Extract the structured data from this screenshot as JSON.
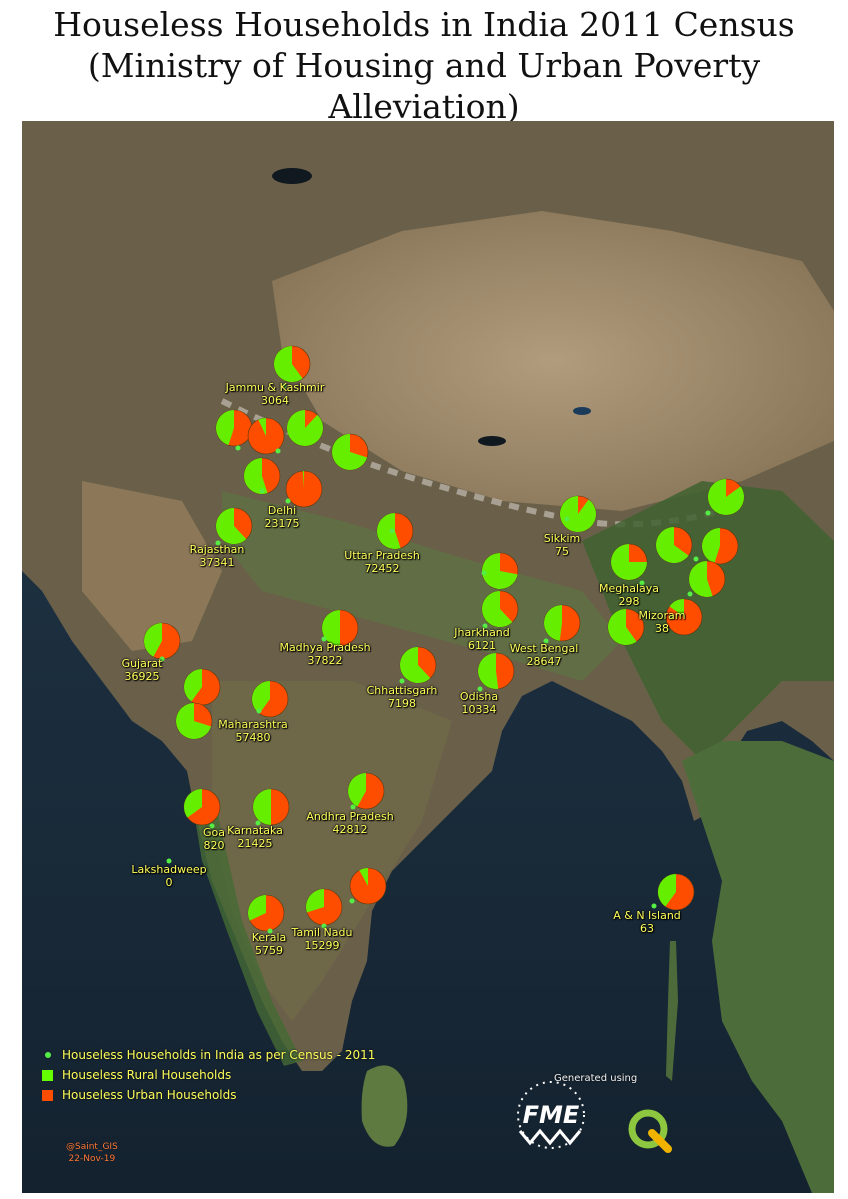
{
  "title": {
    "line1": "Houseless Households in India 2011 Census",
    "line2": "(Ministry of Housing and Urban Poverty",
    "line3": "Alleviation)"
  },
  "colors": {
    "rural": "#66ee00",
    "urban": "#ff4d00",
    "dot": "#55ee44",
    "label_text": "#ffff5a",
    "credit_text": "#ff7a3a"
  },
  "states": [
    {
      "id": "jk",
      "name": "Jammu & Kashmir",
      "value": "3064",
      "rural_share": 0.6
    },
    {
      "id": "delhi",
      "name": "Delhi",
      "value": "23175",
      "rural_share": 0.01
    },
    {
      "id": "rajasthan",
      "name": "Rajasthan",
      "value": "37341",
      "rural_share": 0.62
    },
    {
      "id": "up",
      "name": "Uttar Pradesh",
      "value": "72452",
      "rural_share": 0.55
    },
    {
      "id": "gujarat",
      "name": "Gujarat",
      "value": "36925",
      "rural_share": 0.42
    },
    {
      "id": "mp",
      "name": "Madhya Pradesh",
      "value": "37822",
      "rural_share": 0.5
    },
    {
      "id": "chhattisgarh",
      "name": "Chhattisgarh",
      "value": "7198",
      "rural_share": 0.62
    },
    {
      "id": "maharashtra",
      "name": "Maharashtra",
      "value": "57480",
      "rural_share": 0.4
    },
    {
      "id": "jharkhand",
      "name": "Jharkhand",
      "value": "6121",
      "rural_share": 0.62
    },
    {
      "id": "odisha",
      "name": "Odisha",
      "value": "10334",
      "rural_share": 0.52
    },
    {
      "id": "westbengal",
      "name": "West Bengal",
      "value": "28647",
      "rural_share": 0.48
    },
    {
      "id": "sikkim",
      "name": "Sikkim",
      "value": "75",
      "rural_share": 0.9
    },
    {
      "id": "meghalaya",
      "name": "Meghalaya",
      "value": "298",
      "rural_share": 0.75
    },
    {
      "id": "mizoram",
      "name": "Mizoram",
      "value": "38",
      "rural_share": 0.15
    },
    {
      "id": "andhra",
      "name": "Andhra Pradesh",
      "value": "42812",
      "rural_share": 0.42
    },
    {
      "id": "goa",
      "name": "Goa",
      "value": "820",
      "rural_share": 0.35
    },
    {
      "id": "karnataka",
      "name": "Karnataka",
      "value": "21425",
      "rural_share": 0.5
    },
    {
      "id": "lakshadweep",
      "name": "Lakshadweep",
      "value": "0",
      "rural_share": null
    },
    {
      "id": "kerala",
      "name": "Kerala",
      "value": "5759",
      "rural_share": 0.32
    },
    {
      "id": "tamilnadu",
      "name": "Tamil Nadu",
      "value": "15299",
      "rural_share": 0.3
    },
    {
      "id": "an",
      "name": "A & N Island",
      "value": "63",
      "rural_share": 0.4
    }
  ],
  "unlabeled_pies": [
    {
      "id": "himachal",
      "rural_share": 0.88
    },
    {
      "id": "punjab",
      "rural_share": 0.45
    },
    {
      "id": "uttarakhand",
      "rural_share": 0.7
    },
    {
      "id": "chandigarh",
      "rural_share": 0.07
    },
    {
      "id": "haryana",
      "rural_share": 0.55
    },
    {
      "id": "puducherry",
      "rural_share": 0.08
    },
    {
      "id": "bihar",
      "rural_share": 0.72
    },
    {
      "id": "arunachal",
      "rural_share": 0.85
    },
    {
      "id": "assam",
      "rural_share": 0.65
    },
    {
      "id": "nagaland",
      "rural_share": 0.45
    },
    {
      "id": "manipur",
      "rural_share": 0.55
    },
    {
      "id": "tripura",
      "rural_share": 0.6
    },
    {
      "id": "daman_diu",
      "rural_share": 0.4
    },
    {
      "id": "dadra_nh",
      "rural_share": 0.7
    }
  ],
  "legend": {
    "item_census": "Houseless Households in India as per Census - 2011",
    "item_rural": "Houseless Rural Households",
    "item_urban": "Houseless Urban Households"
  },
  "generated_text": "Generated using",
  "credit": {
    "handle": "@Saint_GIS",
    "date": "22-Nov-19"
  },
  "logos": {
    "fme": "FME",
    "qgis": "Q"
  }
}
